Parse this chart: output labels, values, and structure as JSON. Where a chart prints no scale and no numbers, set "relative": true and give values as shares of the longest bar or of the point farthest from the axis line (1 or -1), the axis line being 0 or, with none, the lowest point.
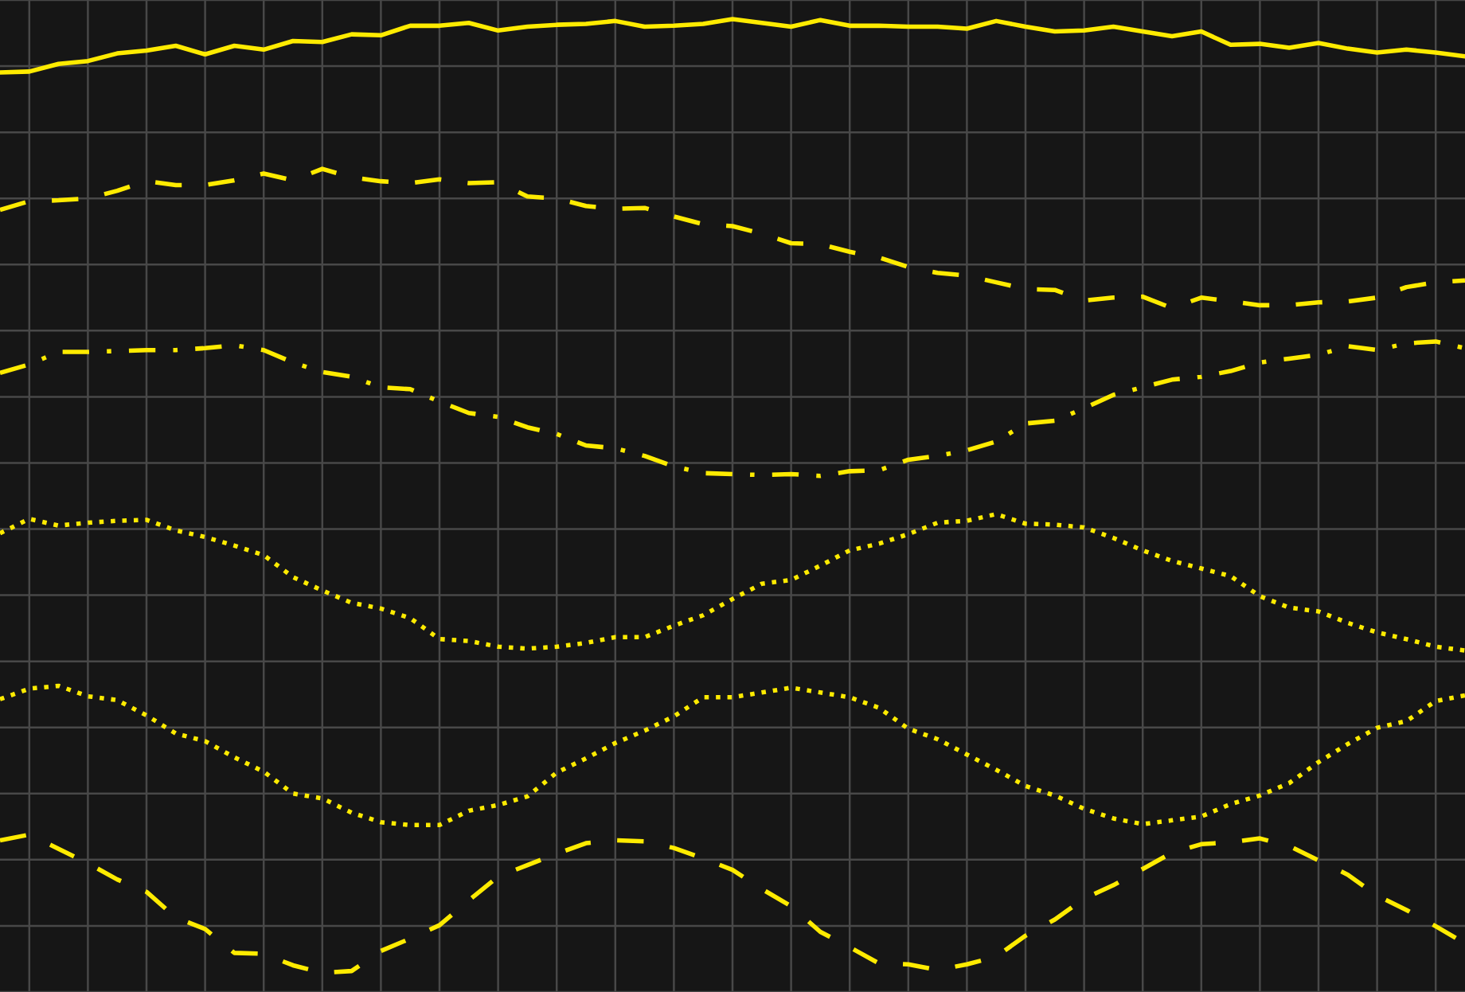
{
  "chart_data": {
    "type": "line",
    "relative": true,
    "grid": true,
    "tick_labels": false,
    "categories": [
      null,
      null,
      null,
      null,
      null,
      null,
      null,
      null,
      null,
      null,
      null,
      null,
      null,
      null,
      null,
      null,
      null,
      null,
      null,
      null,
      null,
      null,
      null,
      null,
      null,
      null,
      null,
      null,
      null,
      null,
      null,
      null,
      null,
      null,
      null,
      null,
      null,
      null,
      null,
      null,
      null,
      null,
      null,
      null,
      null,
      null,
      null,
      null,
      null,
      null,
      null
    ],
    "series": [
      {
        "color": "#ffeb00",
        "line_style": "solid",
        "values": [
          0.944,
          0.945,
          0.953,
          0.956,
          0.964,
          0.967,
          0.972,
          0.963,
          0.972,
          0.968,
          0.977,
          0.976,
          0.984,
          0.983,
          0.993,
          0.993,
          0.996,
          0.988,
          0.992,
          0.994,
          0.995,
          0.998,
          0.992,
          0.993,
          0.995,
          1.0,
          0.996,
          0.992,
          0.999,
          0.993,
          0.993,
          0.992,
          0.992,
          0.99,
          0.998,
          0.992,
          0.987,
          0.988,
          0.992,
          0.987,
          0.982,
          0.987,
          0.973,
          0.974,
          0.97,
          0.975,
          0.969,
          0.965,
          0.968,
          0.965,
          0.961
        ]
      },
      {
        "color": "#ffeb00",
        "line_style": "dashed",
        "values": [
          0.8,
          0.809,
          0.81,
          0.812,
          0.82,
          0.83,
          0.826,
          0.826,
          0.831,
          0.838,
          0.831,
          0.843,
          0.834,
          0.83,
          0.828,
          0.832,
          0.828,
          0.829,
          0.814,
          0.812,
          0.804,
          0.801,
          0.802,
          0.793,
          0.785,
          0.783,
          0.775,
          0.765,
          0.764,
          0.756,
          0.75,
          0.74,
          0.734,
          0.731,
          0.724,
          0.717,
          0.716,
          0.705,
          0.708,
          0.709,
          0.697,
          0.708,
          0.704,
          0.7,
          0.7,
          0.703,
          0.704,
          0.708,
          0.719,
          0.724,
          0.726
        ]
      },
      {
        "color": "#ffeb00",
        "line_style": "dashdot",
        "values": [
          0.629,
          0.638,
          0.651,
          0.651,
          0.652,
          0.653,
          0.653,
          0.655,
          0.658,
          0.653,
          0.64,
          0.63,
          0.625,
          0.614,
          0.612,
          0.599,
          0.587,
          0.583,
          0.572,
          0.565,
          0.553,
          0.55,
          0.542,
          0.531,
          0.524,
          0.523,
          0.522,
          0.523,
          0.521,
          0.526,
          0.527,
          0.538,
          0.542,
          0.548,
          0.557,
          0.576,
          0.579,
          0.592,
          0.606,
          0.614,
          0.622,
          0.625,
          0.631,
          0.64,
          0.644,
          0.648,
          0.657,
          0.653,
          0.66,
          0.662,
          0.655
        ]
      },
      {
        "color": "#ffeb00",
        "line_style": "dotted",
        "values": [
          0.461,
          0.476,
          0.469,
          0.472,
          0.474,
          0.475,
          0.464,
          0.457,
          0.448,
          0.438,
          0.415,
          0.401,
          0.388,
          0.382,
          0.372,
          0.35,
          0.348,
          0.342,
          0.34,
          0.342,
          0.346,
          0.352,
          0.352,
          0.364,
          0.375,
          0.392,
          0.408,
          0.412,
          0.427,
          0.443,
          0.45,
          0.46,
          0.472,
          0.474,
          0.481,
          0.471,
          0.47,
          0.467,
          0.456,
          0.443,
          0.432,
          0.424,
          0.416,
          0.395,
          0.383,
          0.379,
          0.367,
          0.357,
          0.35,
          0.342,
          0.338
        ]
      },
      {
        "color": "#ffeb00",
        "line_style": "dotted",
        "values": [
          0.287,
          0.298,
          0.301,
          0.29,
          0.286,
          0.27,
          0.251,
          0.243,
          0.226,
          0.211,
          0.188,
          0.183,
          0.168,
          0.158,
          0.155,
          0.155,
          0.17,
          0.176,
          0.185,
          0.21,
          0.225,
          0.241,
          0.254,
          0.269,
          0.289,
          0.289,
          0.294,
          0.299,
          0.294,
          0.289,
          0.278,
          0.256,
          0.245,
          0.229,
          0.213,
          0.196,
          0.186,
          0.172,
          0.162,
          0.156,
          0.16,
          0.164,
          0.177,
          0.186,
          0.199,
          0.221,
          0.24,
          0.257,
          0.264,
          0.285,
          0.291
        ]
      },
      {
        "color": "#ffeb00",
        "line_style": "dashed",
        "values": [
          0.139,
          0.145,
          0.13,
          0.115,
          0.098,
          0.085,
          0.058,
          0.046,
          0.021,
          0.02,
          0.008,
          0.0,
          0.002,
          0.023,
          0.036,
          0.05,
          0.076,
          0.101,
          0.113,
          0.125,
          0.136,
          0.139,
          0.138,
          0.131,
          0.12,
          0.108,
          0.088,
          0.07,
          0.043,
          0.027,
          0.01,
          0.009,
          0.003,
          0.009,
          0.017,
          0.039,
          0.056,
          0.078,
          0.092,
          0.109,
          0.126,
          0.135,
          0.137,
          0.141,
          0.133,
          0.118,
          0.103,
          0.081,
          0.066,
          0.049,
          0.031
        ]
      }
    ]
  }
}
